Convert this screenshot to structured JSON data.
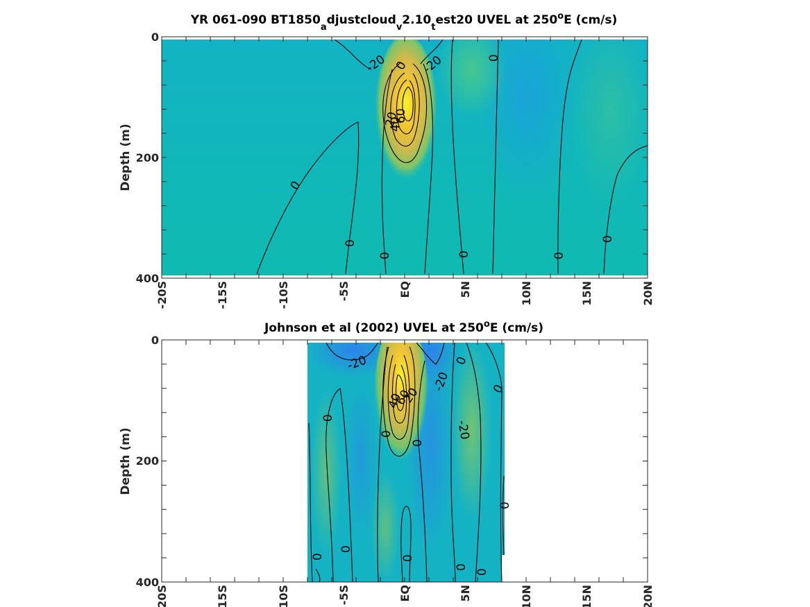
{
  "chart_data": [
    {
      "type": "heatmap",
      "title_main": "YR 061-090 BT1850",
      "title_sub1": "a",
      "title_part2": "djustcloud",
      "title_sub2": "v",
      "title_part3": "2.10",
      "title_sub3": "t",
      "title_part4": "est20 UVEL at 250",
      "title_sup": "o",
      "title_end": "E (cm/s)",
      "ylabel": "Depth (m)",
      "xlabel": "",
      "x_ticks": [
        "-20S",
        "-15S",
        "-10S",
        "-5S",
        "EQ",
        "5N",
        "10N",
        "15N",
        "20N"
      ],
      "y_ticks": [
        "0",
        "200",
        "400"
      ],
      "xlim": [
        -20,
        20
      ],
      "ylim": [
        0,
        400
      ],
      "contour_labels": [
        "-20",
        "0",
        "-20",
        "0",
        "0",
        "0",
        "0",
        "0",
        "0",
        "0",
        "0",
        "60",
        "40",
        "20"
      ],
      "core": {
        "lat": 0,
        "depth": 110,
        "max_speed": 100
      },
      "colormap": "parula"
    },
    {
      "type": "heatmap",
      "title_main": "Johnson et al (2002) UVEL at 250",
      "title_sup": "o",
      "title_end": "E (cm/s)",
      "ylabel": "Depth (m)",
      "xlabel": "",
      "x_ticks": [
        "-20S",
        "-15S",
        "-10S",
        "-5S",
        "EQ",
        "5N",
        "10N",
        "15N",
        "20N"
      ],
      "y_ticks": [
        "0",
        "200",
        "400"
      ],
      "xlim": [
        -20,
        20
      ],
      "ylim": [
        0,
        400
      ],
      "data_extent_lat": [
        -8,
        8
      ],
      "contour_labels": [
        "-20",
        "0",
        "-20",
        "0",
        "0",
        "-20",
        "0",
        "0",
        "0",
        "0",
        "0",
        "0",
        "0",
        "0",
        "40",
        "60",
        "20"
      ],
      "core": {
        "lat": 0,
        "depth": 80,
        "max_speed": 110
      },
      "colormap": "parula"
    }
  ]
}
